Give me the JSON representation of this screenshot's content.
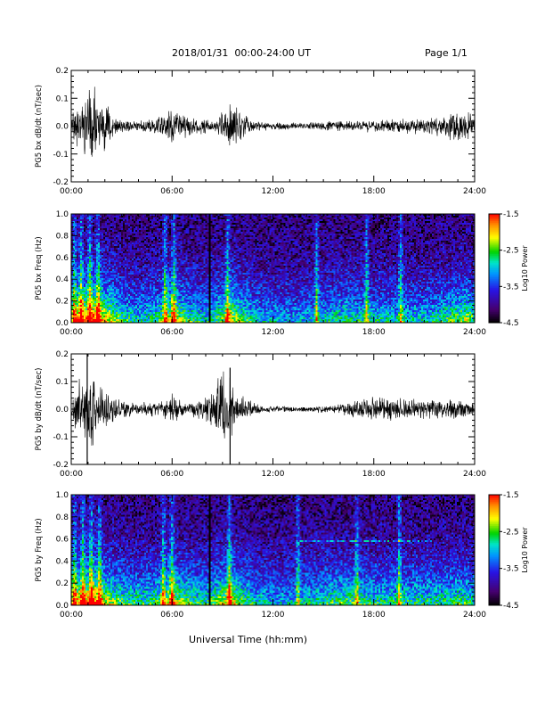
{
  "header": {
    "title": "2018/01/31  00:00-24:00 UT",
    "page": "Page 1/1"
  },
  "x_axis_title": "Universal Time (hh:mm)",
  "chart_data": [
    {
      "type": "line",
      "ylabel": "PG5 bx dB/dt (nT/sec)",
      "x_ticks": [
        "00:00",
        "06:00",
        "12:00",
        "18:00",
        "24:00"
      ],
      "xlim_hours": [
        0,
        24
      ],
      "ylim": [
        -0.2,
        0.2
      ],
      "y_ticks": [
        "0.2",
        "0.1",
        "0.0",
        "-0.1",
        "-0.2"
      ],
      "color": "#000000",
      "envelope": {
        "hours": [
          0,
          0.5,
          1,
          1.5,
          2,
          2.5,
          3,
          4,
          5,
          5.5,
          6,
          6.5,
          7,
          7.5,
          8,
          8.5,
          9,
          9.5,
          10,
          11,
          12,
          13,
          14,
          15,
          16,
          17,
          18,
          19,
          20,
          21,
          22,
          22.5,
          23,
          23.5,
          24
        ],
        "amplitude": [
          0.05,
          0.1,
          0.14,
          0.16,
          0.1,
          0.05,
          0.03,
          0.025,
          0.03,
          0.05,
          0.07,
          0.05,
          0.04,
          0.035,
          0.03,
          0.03,
          0.06,
          0.09,
          0.06,
          0.02,
          0.015,
          0.015,
          0.015,
          0.02,
          0.02,
          0.02,
          0.025,
          0.03,
          0.03,
          0.035,
          0.04,
          0.06,
          0.08,
          0.06,
          0.05
        ]
      }
    },
    {
      "type": "heatmap",
      "ylabel": "PG5 bx Freq (Hz)",
      "x_ticks": [
        "00:00",
        "06:00",
        "12:00",
        "18:00",
        "24:00"
      ],
      "ylim": [
        0,
        1.0
      ],
      "y_ticks": [
        "1.0",
        "0.8",
        "0.6",
        "0.4",
        "0.2",
        "0.0"
      ],
      "colorbar": {
        "label": "Log10 Power",
        "ticks": [
          "-1.5",
          "-2.5",
          "-3.5",
          "-4.5"
        ],
        "range": [
          -4.5,
          -1.5
        ]
      },
      "activity": {
        "hours": [
          0,
          0.5,
          1,
          1.5,
          2,
          3,
          4,
          5,
          6,
          7,
          8,
          9,
          9.5,
          10,
          11,
          12,
          13,
          14,
          15,
          16,
          17,
          18,
          19,
          20,
          21,
          22,
          23,
          23.5,
          24
        ],
        "level": [
          0.7,
          0.85,
          0.9,
          0.95,
          0.8,
          0.55,
          0.45,
          0.5,
          0.75,
          0.55,
          0.45,
          0.6,
          0.75,
          0.6,
          0.45,
          0.4,
          0.38,
          0.4,
          0.45,
          0.5,
          0.48,
          0.45,
          0.45,
          0.45,
          0.45,
          0.5,
          0.6,
          0.65,
          0.55
        ]
      },
      "data_gap_hours": [
        8.15
      ],
      "bright_streaks_hours": [
        0.2,
        0.6,
        1.1,
        1.6,
        5.6,
        6.1,
        9.3,
        14.6,
        17.6,
        19.6
      ]
    },
    {
      "type": "line",
      "ylabel": "PG5 by dB/dt (nT/sec)",
      "x_ticks": [
        "00:00",
        "06:00",
        "12:00",
        "18:00",
        "24:00"
      ],
      "xlim_hours": [
        0,
        24
      ],
      "ylim": [
        -0.2,
        0.2
      ],
      "y_ticks": [
        "0.2",
        "0.1",
        "0.0",
        "-0.1",
        "-0.2"
      ],
      "color": "#000000",
      "envelope": {
        "hours": [
          0,
          0.5,
          1,
          1.5,
          2,
          3,
          4,
          5,
          5.5,
          6,
          6.5,
          7,
          7.5,
          8,
          8.5,
          9,
          9.5,
          10,
          11,
          12,
          13,
          14,
          15,
          16,
          17,
          18,
          19,
          20,
          21,
          22,
          23,
          24
        ],
        "amplitude": [
          0.05,
          0.12,
          0.2,
          0.12,
          0.08,
          0.04,
          0.03,
          0.03,
          0.04,
          0.06,
          0.04,
          0.03,
          0.04,
          0.05,
          0.09,
          0.17,
          0.12,
          0.06,
          0.02,
          0.012,
          0.012,
          0.012,
          0.015,
          0.02,
          0.04,
          0.05,
          0.05,
          0.045,
          0.045,
          0.04,
          0.04,
          0.03
        ]
      },
      "spikes": [
        {
          "hour": 0.95,
          "min": -0.2,
          "max": 0.2
        },
        {
          "hour": 9.45,
          "min": -0.2,
          "max": 0.15
        }
      ]
    },
    {
      "type": "heatmap",
      "ylabel": "PG5 by Freq (Hz)",
      "x_ticks": [
        "00:00",
        "06:00",
        "12:00",
        "18:00",
        "24:00"
      ],
      "ylim": [
        0,
        1.0
      ],
      "y_ticks": [
        "1.0",
        "0.8",
        "0.6",
        "0.4",
        "0.2",
        "0.0"
      ],
      "colorbar": {
        "label": "Log10 Power",
        "ticks": [
          "-1.5",
          "-2.5",
          "-3.5",
          "-4.5"
        ],
        "range": [
          -4.5,
          -1.5
        ]
      },
      "activity": {
        "hours": [
          0,
          0.5,
          1,
          1.5,
          2,
          3,
          4,
          5,
          6,
          7,
          8,
          9,
          9.5,
          10,
          11,
          12,
          13,
          14,
          15,
          16,
          17,
          18,
          19,
          20,
          21,
          22,
          23,
          24
        ],
        "level": [
          0.75,
          0.85,
          0.9,
          0.9,
          0.75,
          0.55,
          0.5,
          0.55,
          0.75,
          0.55,
          0.5,
          0.7,
          0.8,
          0.6,
          0.45,
          0.4,
          0.4,
          0.45,
          0.5,
          0.55,
          0.55,
          0.5,
          0.5,
          0.5,
          0.5,
          0.5,
          0.55,
          0.5
        ]
      },
      "data_gap_hours": [
        8.15
      ],
      "bright_streaks_hours": [
        0.2,
        0.7,
        1.2,
        1.7,
        5.5,
        6.0,
        9.4,
        13.5,
        17.0,
        19.5
      ],
      "spectral_line": {
        "freq_hz": 0.58,
        "from_hour": 13.5,
        "to_hour": 21.5
      }
    }
  ]
}
